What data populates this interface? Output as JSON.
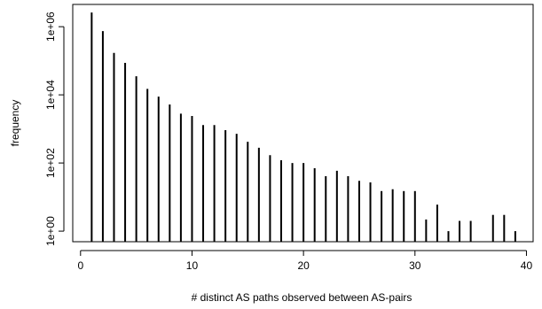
{
  "chart_data": {
    "type": "bar",
    "color": "#000000",
    "log_y": true,
    "grid": false,
    "x_label": "# distinct AS paths observed between AS-pairs",
    "y_label": "frequency",
    "x": [
      1,
      2,
      3,
      4,
      5,
      6,
      7,
      8,
      9,
      10,
      11,
      12,
      13,
      14,
      15,
      16,
      17,
      18,
      19,
      20,
      21,
      22,
      23,
      24,
      25,
      26,
      27,
      28,
      29,
      30,
      31,
      32,
      33,
      34,
      35,
      37,
      38,
      39
    ],
    "values": [
      2600000,
      740000,
      170000,
      87000,
      35000,
      15000,
      8900,
      5200,
      2800,
      2400,
      1300,
      1300,
      920,
      720,
      420,
      280,
      170,
      120,
      100,
      100,
      70,
      41,
      59,
      41,
      30,
      27,
      15,
      17,
      15,
      15,
      2.2,
      6,
      1,
      2,
      2,
      3,
      3,
      1
    ],
    "xlim": [
      -0.7,
      40.6
    ],
    "xticks": [
      0,
      10,
      20,
      30,
      40
    ],
    "ylim": [
      0.49,
      4500000
    ],
    "yticks": [
      {
        "value": 1,
        "label": "1e+00"
      },
      {
        "value": 100,
        "label": "1e+02"
      },
      {
        "value": 10000,
        "label": "1e+04"
      },
      {
        "value": 1000000,
        "label": "1e+06"
      }
    ]
  }
}
